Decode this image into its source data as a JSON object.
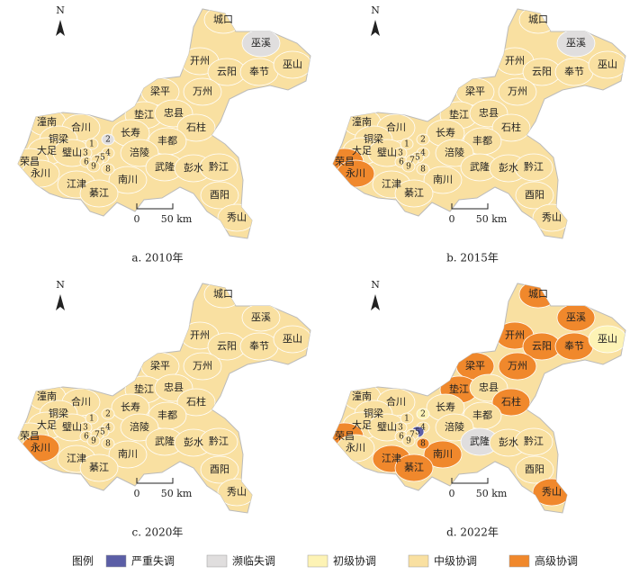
{
  "north": "N",
  "scale_bar": {
    "zero": "0",
    "distance": "50 km"
  },
  "districts": [
    "城口",
    "巫溪",
    "开州",
    "云阳",
    "奉节",
    "巫山",
    "梁平",
    "万州",
    "垫江",
    "忠县",
    "石柱",
    "潼南",
    "合川",
    "长寿",
    "丰都",
    "铜梁",
    "大足",
    "荣昌",
    "璧山",
    "涪陵",
    "永川",
    "武隆",
    "彭水",
    "黔江",
    "江津",
    "南川",
    "綦江",
    "酉阳",
    "秀山",
    "1",
    "2",
    "3",
    "4",
    "5",
    "6",
    "7",
    "8",
    "9"
  ],
  "legend": {
    "title": "图例",
    "items": [
      {
        "name": "严重失调",
        "color": "#5b5ea6"
      },
      {
        "name": "濒临失调",
        "color": "#e0dede"
      },
      {
        "name": "初级协调",
        "color": "#fdf3b5"
      },
      {
        "name": "中级协调",
        "color": "#f9e0a1"
      },
      {
        "name": "高级协调",
        "color": "#f0882c"
      }
    ]
  },
  "panels": [
    {
      "caption": "a.  2010年",
      "levels": [
        3,
        1,
        3,
        3,
        3,
        3,
        3,
        3,
        3,
        3,
        3,
        3,
        3,
        3,
        3,
        3,
        3,
        3,
        3,
        3,
        3,
        3,
        3,
        3,
        3,
        3,
        3,
        3,
        3,
        3,
        1,
        3,
        3,
        3,
        3,
        3,
        3,
        3
      ]
    },
    {
      "caption": "b.  2015年",
      "levels": [
        3,
        1,
        3,
        3,
        3,
        3,
        3,
        3,
        3,
        3,
        3,
        3,
        3,
        3,
        3,
        3,
        3,
        4,
        3,
        3,
        4,
        3,
        3,
        3,
        3,
        3,
        3,
        3,
        3,
        3,
        3,
        3,
        3,
        3,
        3,
        3,
        3,
        3
      ]
    },
    {
      "caption": "c.  2020年",
      "levels": [
        3,
        3,
        3,
        3,
        3,
        3,
        3,
        3,
        3,
        3,
        3,
        3,
        3,
        3,
        3,
        3,
        3,
        3,
        3,
        3,
        4,
        3,
        3,
        3,
        3,
        3,
        3,
        3,
        3,
        3,
        3,
        3,
        3,
        3,
        3,
        3,
        3,
        3
      ]
    },
    {
      "caption": "d.  2022年",
      "levels": [
        4,
        4,
        4,
        4,
        4,
        2,
        4,
        4,
        4,
        3,
        4,
        3,
        3,
        3,
        3,
        3,
        3,
        4,
        3,
        3,
        3,
        1,
        3,
        3,
        4,
        4,
        4,
        3,
        4,
        3,
        2,
        3,
        3,
        0,
        3,
        3,
        4,
        3
      ]
    }
  ]
}
